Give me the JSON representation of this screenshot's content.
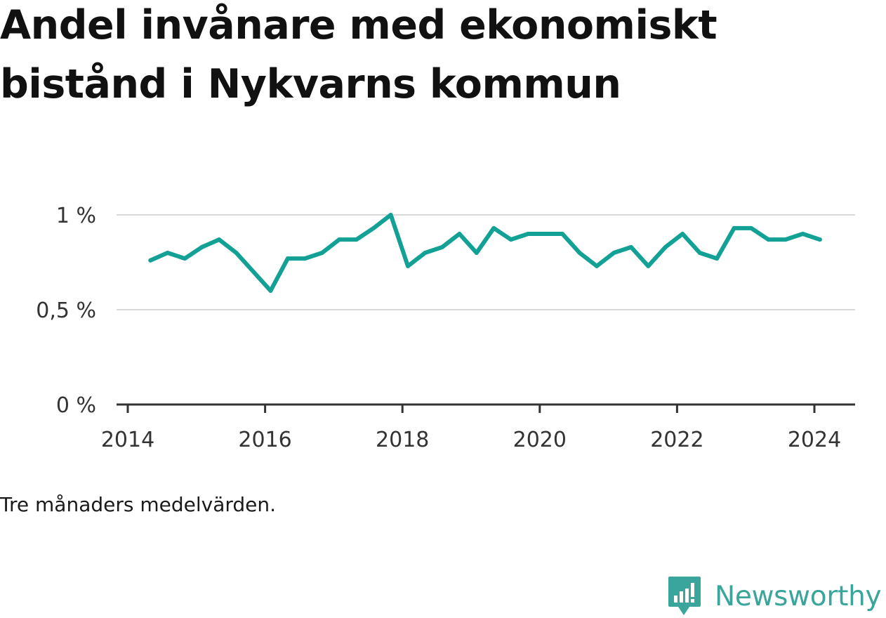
{
  "title": "Andel invånare med ekonomiskt bistånd i Nykvarns kommun",
  "note": "Tre månaders medelvärden.",
  "brand": {
    "name": "Newsworthy",
    "logo_icon": "bar-chart-speech-bubble-icon"
  },
  "colors": {
    "line": "#13a196",
    "grid": "#d9d9d9",
    "axis": "#333333",
    "brand": "#3aa59a"
  },
  "chart_data": {
    "type": "line",
    "title": "Andel invånare med ekonomiskt bistånd i Nykvarns kommun",
    "xlabel": "",
    "ylabel": "",
    "xlim": [
      2014.0,
      2024.6
    ],
    "ylim": [
      0,
      1.0
    ],
    "x_ticks": [
      2014,
      2016,
      2018,
      2020,
      2022,
      2024
    ],
    "x_tick_labels": [
      "2014",
      "2016",
      "2018",
      "2020",
      "2022",
      "2024"
    ],
    "y_ticks": [
      0,
      0.5,
      1.0
    ],
    "y_tick_labels": [
      "0 %",
      "0,5 %",
      "1 %"
    ],
    "grid": true,
    "series": [
      {
        "x": [
          2014.33,
          2014.58,
          2014.83,
          2015.08,
          2015.33,
          2015.58,
          2015.83,
          2016.08,
          2016.33,
          2016.58,
          2016.83,
          2017.08,
          2017.33,
          2017.58,
          2017.83,
          2018.08,
          2018.33,
          2018.58,
          2018.83,
          2019.08,
          2019.33,
          2019.58,
          2019.83,
          2020.08,
          2020.33,
          2020.58,
          2020.83,
          2021.08,
          2021.33,
          2021.58,
          2021.83,
          2022.08,
          2022.33,
          2022.58,
          2022.83,
          2023.08,
          2023.33,
          2023.58,
          2023.83,
          2024.08
        ],
        "values": [
          0.76,
          0.8,
          0.77,
          0.83,
          0.87,
          0.8,
          0.7,
          0.6,
          0.77,
          0.77,
          0.8,
          0.87,
          0.87,
          0.93,
          1.0,
          0.73,
          0.8,
          0.83,
          0.9,
          0.8,
          0.93,
          0.87,
          0.9,
          0.9,
          0.9,
          0.8,
          0.73,
          0.8,
          0.83,
          0.73,
          0.83,
          0.9,
          0.8,
          0.77,
          0.93,
          0.93,
          0.87,
          0.87,
          0.9,
          0.87
        ]
      }
    ]
  }
}
